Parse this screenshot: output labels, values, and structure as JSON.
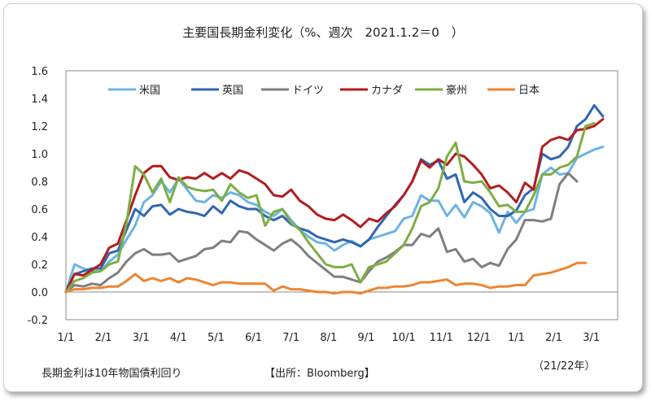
{
  "chart_data": {
    "type": "line",
    "title": "主要国長期金利変化（%、週次　2021.1.2＝0　）",
    "xlabel": "",
    "ylabel": "",
    "ylim": [
      -0.2,
      1.6
    ],
    "yticks": [
      "1.6",
      "1.4",
      "1.2",
      "1.0",
      "0.8",
      "0.6",
      "0.4",
      "0.2",
      "0.0",
      "-0.2"
    ],
    "x_ticks": [
      "1/1",
      "2/1",
      "3/1",
      "4/1",
      "5/1",
      "6/1",
      "7/1",
      "8/1",
      "9/1",
      "10/1",
      "11/1",
      "12/1",
      "1/1",
      "2/1",
      "3/1"
    ],
    "grid": false,
    "legend_position": "top",
    "series": [
      {
        "name": "米国",
        "color": "#6cb4e4",
        "values": [
          0.0,
          0.2,
          0.17,
          0.15,
          0.15,
          0.22,
          0.27,
          0.38,
          0.48,
          0.65,
          0.7,
          0.8,
          0.72,
          0.82,
          0.74,
          0.66,
          0.65,
          0.7,
          0.68,
          0.72,
          0.7,
          0.65,
          0.63,
          0.58,
          0.55,
          0.6,
          0.52,
          0.45,
          0.4,
          0.36,
          0.35,
          0.3,
          0.34,
          0.37,
          0.33,
          0.38,
          0.4,
          0.42,
          0.44,
          0.53,
          0.55,
          0.7,
          0.66,
          0.66,
          0.55,
          0.63,
          0.54,
          0.65,
          0.62,
          0.57,
          0.43,
          0.58,
          0.5,
          0.58,
          0.6,
          0.85,
          0.9,
          0.85,
          0.86,
          0.97,
          1.0,
          1.03,
          1.05
        ]
      },
      {
        "name": "英国",
        "color": "#2f67b1",
        "values": [
          0.0,
          0.13,
          0.15,
          0.17,
          0.17,
          0.28,
          0.3,
          0.45,
          0.6,
          0.55,
          0.62,
          0.63,
          0.56,
          0.6,
          0.58,
          0.57,
          0.55,
          0.62,
          0.57,
          0.66,
          0.62,
          0.6,
          0.6,
          0.55,
          0.52,
          0.55,
          0.49,
          0.46,
          0.44,
          0.4,
          0.38,
          0.36,
          0.38,
          0.36,
          0.33,
          0.38,
          0.47,
          0.55,
          0.63,
          0.7,
          0.8,
          0.96,
          0.92,
          0.95,
          0.82,
          0.85,
          0.65,
          0.72,
          0.68,
          0.6,
          0.55,
          0.55,
          0.59,
          0.7,
          0.75,
          1.0,
          0.96,
          0.98,
          1.05,
          1.2,
          1.25,
          1.35,
          1.27
        ]
      },
      {
        "name": "ドイツ",
        "color": "#7f7f7f",
        "values": [
          0.0,
          0.05,
          0.04,
          0.06,
          0.05,
          0.1,
          0.14,
          0.22,
          0.28,
          0.31,
          0.27,
          0.27,
          0.28,
          0.22,
          0.24,
          0.26,
          0.31,
          0.32,
          0.37,
          0.36,
          0.44,
          0.43,
          0.38,
          0.34,
          0.3,
          0.35,
          0.38,
          0.33,
          0.26,
          0.21,
          0.16,
          0.11,
          0.11,
          0.09,
          0.07,
          0.15,
          0.22,
          0.25,
          0.29,
          0.34,
          0.34,
          0.42,
          0.4,
          0.46,
          0.29,
          0.31,
          0.22,
          0.24,
          0.18,
          0.21,
          0.19,
          0.31,
          0.38,
          0.52,
          0.52,
          0.51,
          0.53,
          0.78,
          0.86,
          0.8
        ]
      },
      {
        "name": "カナダ",
        "color": "#b41c1c",
        "values": [
          0.0,
          0.13,
          0.12,
          0.16,
          0.2,
          0.32,
          0.35,
          0.52,
          0.7,
          0.86,
          0.91,
          0.91,
          0.83,
          0.81,
          0.83,
          0.82,
          0.86,
          0.82,
          0.86,
          0.82,
          0.88,
          0.86,
          0.82,
          0.78,
          0.7,
          0.69,
          0.74,
          0.66,
          0.62,
          0.56,
          0.53,
          0.52,
          0.56,
          0.52,
          0.47,
          0.53,
          0.51,
          0.57,
          0.62,
          0.7,
          0.8,
          0.95,
          0.9,
          0.96,
          0.92,
          1.0,
          0.98,
          0.92,
          0.85,
          0.75,
          0.77,
          0.72,
          0.65,
          0.79,
          0.74,
          1.05,
          1.1,
          1.12,
          1.1,
          1.17,
          1.18,
          1.2,
          1.25
        ]
      },
      {
        "name": "豪州",
        "color": "#7dae43",
        "values": [
          0.0,
          0.08,
          0.1,
          0.14,
          0.15,
          0.2,
          0.22,
          0.5,
          0.91,
          0.85,
          0.72,
          0.82,
          0.65,
          0.83,
          0.76,
          0.74,
          0.73,
          0.74,
          0.66,
          0.78,
          0.72,
          0.68,
          0.7,
          0.48,
          0.58,
          0.6,
          0.5,
          0.45,
          0.36,
          0.28,
          0.2,
          0.18,
          0.18,
          0.2,
          0.07,
          0.18,
          0.2,
          0.22,
          0.28,
          0.34,
          0.46,
          0.62,
          0.65,
          0.75,
          0.98,
          1.08,
          0.8,
          0.79,
          0.8,
          0.72,
          0.62,
          0.63,
          0.58,
          0.58,
          0.7,
          0.85,
          0.85,
          0.9,
          0.92,
          0.98,
          1.2,
          1.22
        ]
      },
      {
        "name": "日本",
        "color": "#ec8533",
        "values": [
          0.0,
          0.02,
          0.02,
          0.03,
          0.03,
          0.04,
          0.04,
          0.08,
          0.13,
          0.08,
          0.1,
          0.08,
          0.1,
          0.07,
          0.1,
          0.09,
          0.07,
          0.05,
          0.07,
          0.07,
          0.06,
          0.06,
          0.06,
          0.06,
          0.01,
          0.04,
          0.02,
          0.02,
          0.01,
          0.0,
          0.0,
          -0.01,
          0.0,
          0.0,
          -0.01,
          0.01,
          0.03,
          0.03,
          0.04,
          0.04,
          0.05,
          0.07,
          0.07,
          0.08,
          0.09,
          0.05,
          0.06,
          0.06,
          0.05,
          0.03,
          0.04,
          0.04,
          0.05,
          0.05,
          0.12,
          0.13,
          0.14,
          0.16,
          0.18,
          0.21,
          0.21
        ]
      }
    ]
  },
  "footer": {
    "note": "長期金利は10年物国債利回り",
    "source": "【出所：Bloomberg】",
    "period": "（21/22年）"
  }
}
